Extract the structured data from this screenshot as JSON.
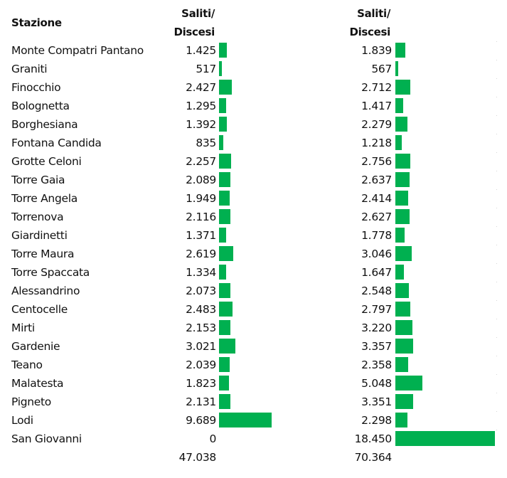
{
  "chart_data": {
    "type": "bar",
    "orientation": "horizontal",
    "title": "",
    "column_headers": [
      "Stazione",
      "Saliti/ Discesi",
      "Saliti/ Discesi"
    ],
    "categories": [
      "Monte Compatri Pantano",
      "Graniti",
      "Finocchio",
      "Bolognetta",
      "Borghesiana",
      "Fontana Candida",
      "Grotte Celoni",
      "Torre Gaia",
      "Torre Angela",
      "Torrenova",
      "Giardinetti",
      "Torre Maura",
      "Torre Spaccata",
      "Alessandrino",
      "Centocelle",
      "Mirti",
      "Gardenie",
      "Teano",
      "Malatesta",
      "Pigneto",
      "Lodi",
      "San Giovanni"
    ],
    "series": [
      {
        "name": "Saliti/Discesi (1)",
        "values": [
          1425,
          517,
          2427,
          1295,
          1392,
          835,
          2257,
          2089,
          1949,
          2116,
          1371,
          2619,
          1334,
          2073,
          2483,
          2153,
          3021,
          2039,
          1823,
          2131,
          9689,
          0
        ],
        "total": 47038
      },
      {
        "name": "Saliti/Discesi (2)",
        "values": [
          1839,
          567,
          2712,
          1417,
          2279,
          1218,
          2756,
          2637,
          2414,
          2627,
          1778,
          3046,
          1647,
          2548,
          2797,
          3220,
          3357,
          2358,
          5048,
          3351,
          2298,
          18450
        ],
        "total": 70364
      }
    ],
    "bar_color": "#00b050",
    "xlim": [
      0,
      18450
    ],
    "grid": false,
    "legend": "none"
  },
  "header": {
    "station": "Stazione",
    "col1_line1": "Saliti/",
    "col1_line2": "Discesi",
    "col2_line1": "Saliti/",
    "col2_line2": "Discesi"
  },
  "rows": [
    {
      "name": "Monte Compatri Pantano",
      "v1": "1.425",
      "v2": "1.839"
    },
    {
      "name": "Graniti",
      "v1": "517",
      "v2": "567"
    },
    {
      "name": "Finocchio",
      "v1": "2.427",
      "v2": "2.712"
    },
    {
      "name": "Bolognetta",
      "v1": "1.295",
      "v2": "1.417"
    },
    {
      "name": "Borghesiana",
      "v1": "1.392",
      "v2": "2.279"
    },
    {
      "name": "Fontana Candida",
      "v1": "835",
      "v2": "1.218"
    },
    {
      "name": "Grotte Celoni",
      "v1": "2.257",
      "v2": "2.756"
    },
    {
      "name": "Torre Gaia",
      "v1": "2.089",
      "v2": "2.637"
    },
    {
      "name": "Torre Angela",
      "v1": "1.949",
      "v2": "2.414"
    },
    {
      "name": "Torrenova",
      "v1": "2.116",
      "v2": "2.627"
    },
    {
      "name": "Giardinetti",
      "v1": "1.371",
      "v2": "1.778"
    },
    {
      "name": "Torre Maura",
      "v1": "2.619",
      "v2": "3.046"
    },
    {
      "name": "Torre Spaccata",
      "v1": "1.334",
      "v2": "1.647"
    },
    {
      "name": "Alessandrino",
      "v1": "2.073",
      "v2": "2.548"
    },
    {
      "name": "Centocelle",
      "v1": "2.483",
      "v2": "2.797"
    },
    {
      "name": "Mirti",
      "v1": "2.153",
      "v2": "3.220"
    },
    {
      "name": "Gardenie",
      "v1": "3.021",
      "v2": "3.357"
    },
    {
      "name": "Teano",
      "v1": "2.039",
      "v2": "2.358"
    },
    {
      "name": "Malatesta",
      "v1": "1.823",
      "v2": "5.048"
    },
    {
      "name": "Pigneto",
      "v1": "2.131",
      "v2": "3.351"
    },
    {
      "name": "Lodi",
      "v1": "9.689",
      "v2": "2.298"
    },
    {
      "name": "San Giovanni",
      "v1": "0",
      "v2": "18.450"
    }
  ],
  "totals": {
    "v1": "47.038",
    "v2": "70.364"
  }
}
